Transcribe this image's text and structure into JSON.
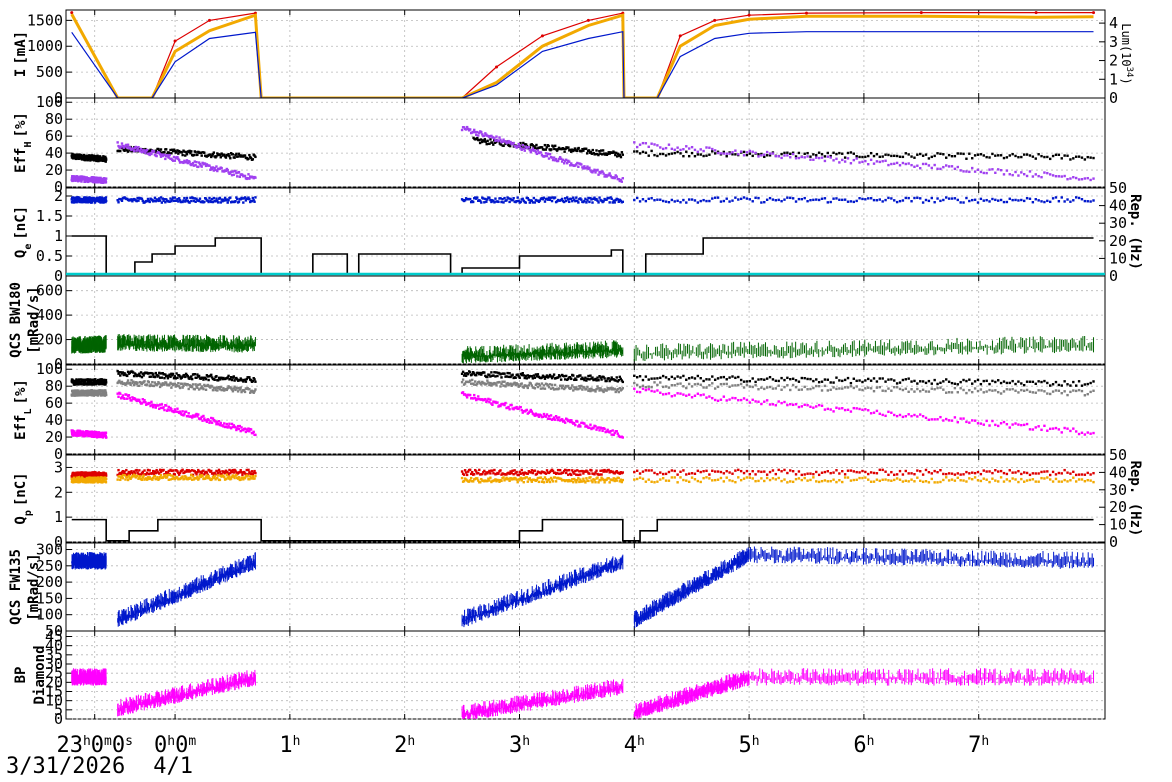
{
  "colors": {
    "red": "#dd0000",
    "orange": "#f2a900",
    "blue": "#0018cc",
    "black": "#000000",
    "purple": "#a040f0",
    "cyan": "#00cccc",
    "green": "#006400",
    "gray": "#808080",
    "magenta": "#ff00ff",
    "grid": "#b8b8b8"
  },
  "date": {
    "first": "3/31/2026",
    "second": "4/1"
  },
  "chart_data": [
    {
      "type": "line",
      "ylabel_main": "I",
      "ylabel_unit": "[mA]",
      "ylim": [
        0,
        1700
      ],
      "yticks": [
        0,
        500,
        1000,
        1500
      ],
      "right_axis": {
        "label_pre": "Lum(10",
        "label_sup": "34",
        "label_post": ")",
        "ylim": [
          0,
          4.7
        ],
        "ticks": [
          0,
          1,
          2,
          3,
          4
        ]
      },
      "x": [
        23.1,
        23.5,
        23.8,
        24.0,
        24.3,
        24.7,
        24.75,
        25.5,
        26.5,
        26.8,
        27.2,
        27.6,
        27.9,
        27.91,
        28.0,
        28.2,
        28.4,
        28.7,
        29.0,
        29.5,
        30.5,
        31.5,
        32.0
      ],
      "series": [
        {
          "name": "",
          "color": "red",
          "values": [
            1650,
            0,
            0,
            1100,
            1500,
            1640,
            0,
            0,
            0,
            600,
            1200,
            1500,
            1640,
            0,
            0,
            0,
            1200,
            1500,
            1600,
            1640,
            1650,
            1650,
            1650
          ]
        },
        {
          "name": "",
          "color": "orange",
          "values": [
            1620,
            0,
            0,
            900,
            1300,
            1600,
            0,
            0,
            0,
            300,
            1000,
            1400,
            1600,
            0,
            0,
            0,
            1000,
            1400,
            1520,
            1580,
            1580,
            1560,
            1570
          ]
        },
        {
          "name": "",
          "color": "blue",
          "values": [
            1270,
            0,
            0,
            700,
            1150,
            1270,
            0,
            0,
            0,
            250,
            900,
            1150,
            1280,
            0,
            0,
            0,
            800,
            1150,
            1250,
            1280,
            1280,
            1280,
            1280
          ]
        }
      ]
    },
    {
      "type": "scatter",
      "ylabel_main": "Eff",
      "ylabel_sub": "H",
      "ylabel_unit": "[%]",
      "ylim": [
        0,
        105
      ],
      "yticks": [
        0,
        20,
        40,
        60,
        80,
        100
      ],
      "series": [
        {
          "name": "",
          "color": "black",
          "segments": [
            [
              23.1,
              23.4,
              36,
              33
            ],
            [
              23.5,
              24.7,
              45,
              35
            ],
            [
              26.6,
              27.9,
              55,
              38
            ],
            [
              28.0,
              32.0,
              40,
              35
            ]
          ]
        },
        {
          "name": "",
          "color": "purple",
          "segments": [
            [
              23.1,
              23.4,
              10,
              8
            ],
            [
              23.5,
              24.7,
              50,
              10
            ],
            [
              26.5,
              27.9,
              70,
              8
            ],
            [
              28.0,
              32.0,
              50,
              10
            ]
          ]
        }
      ]
    },
    {
      "type": "scatter",
      "ylabel_main": "Q",
      "ylabel_sub": "e",
      "ylabel_unit": "[nC]",
      "ylim": [
        0,
        2.2
      ],
      "yticks": [
        0,
        0.5,
        1,
        1.5,
        2
      ],
      "right_axis": {
        "label": "Rep. (Hz)",
        "ylim": [
          0,
          50
        ],
        "ticks": [
          0,
          10,
          20,
          30,
          40,
          50
        ]
      },
      "series": [
        {
          "name": "",
          "color": "blue",
          "segments": [
            [
              23.1,
              23.4,
              1.9,
              1.9
            ],
            [
              23.5,
              24.7,
              1.9,
              1.9
            ],
            [
              26.5,
              27.9,
              1.9,
              1.9
            ],
            [
              28.0,
              32.0,
              1.9,
              1.9
            ]
          ]
        },
        {
          "name": "",
          "color": "black",
          "steps": [
            [
              23.1,
              1.0
            ],
            [
              23.4,
              0.05
            ],
            [
              23.65,
              0.35
            ],
            [
              23.8,
              0.55
            ],
            [
              24.0,
              0.75
            ],
            [
              24.35,
              0.95
            ],
            [
              24.7,
              0.95
            ],
            [
              24.75,
              0.05
            ],
            [
              25.2,
              0.55
            ],
            [
              25.5,
              0.05
            ],
            [
              25.6,
              0.55
            ],
            [
              26.4,
              0.05
            ],
            [
              26.5,
              0.2
            ],
            [
              27.0,
              0.5
            ],
            [
              27.8,
              0.65
            ],
            [
              27.9,
              0.05
            ],
            [
              28.1,
              0.55
            ],
            [
              28.6,
              0.95
            ],
            [
              32.0,
              0.95
            ]
          ]
        },
        {
          "name": "",
          "color": "cyan",
          "values_const": 0.05
        }
      ]
    },
    {
      "type": "line",
      "ylabel_main": "QCS BW180",
      "ylabel_unit": "[mRad/s]",
      "ylim": [
        0,
        720
      ],
      "yticks": [
        0,
        200,
        400,
        600
      ],
      "series": [
        {
          "name": "",
          "color": "green",
          "segments": [
            [
              23.1,
              23.4,
              140,
              150
            ],
            [
              23.5,
              24.7,
              160,
              150
            ],
            [
              26.5,
              27.9,
              60,
              110
            ],
            [
              28.0,
              32.0,
              80,
              150
            ]
          ]
        }
      ]
    },
    {
      "type": "scatter",
      "ylabel_main": "Eff",
      "ylabel_sub": "L",
      "ylabel_unit": "[%]",
      "ylim": [
        0,
        105
      ],
      "yticks": [
        0,
        20,
        40,
        60,
        80,
        100
      ],
      "series": [
        {
          "name": "",
          "color": "black",
          "segments": [
            [
              23.1,
              23.4,
              85,
              85
            ],
            [
              23.5,
              24.7,
              95,
              88
            ],
            [
              26.5,
              27.9,
              95,
              88
            ],
            [
              28.0,
              32.0,
              90,
              83
            ]
          ]
        },
        {
          "name": "",
          "color": "gray",
          "segments": [
            [
              23.1,
              23.4,
              72,
              72
            ],
            [
              23.5,
              24.7,
              85,
              75
            ],
            [
              26.5,
              27.9,
              85,
              75
            ],
            [
              28.0,
              32.0,
              82,
              72
            ]
          ]
        },
        {
          "name": "",
          "color": "magenta",
          "segments": [
            [
              23.1,
              23.4,
              25,
              22
            ],
            [
              23.5,
              24.7,
              70,
              25
            ],
            [
              26.5,
              27.9,
              70,
              22
            ],
            [
              28.0,
              32.0,
              75,
              25
            ]
          ]
        }
      ]
    },
    {
      "type": "scatter",
      "ylabel_main": "Q",
      "ylabel_sub": "p",
      "ylabel_unit": "[nC]",
      "ylim": [
        0,
        3.5
      ],
      "yticks": [
        0,
        1,
        2,
        3
      ],
      "right_axis": {
        "label": "Rep. (Hz)",
        "ylim": [
          0,
          50
        ],
        "ticks": [
          0,
          10,
          20,
          30,
          40,
          50
        ]
      },
      "series": [
        {
          "name": "",
          "color": "red",
          "segments": [
            [
              23.1,
              23.4,
              2.7,
              2.7
            ],
            [
              23.5,
              24.7,
              2.8,
              2.8
            ],
            [
              26.5,
              27.9,
              2.8,
              2.8
            ],
            [
              28.0,
              32.0,
              2.8,
              2.8
            ]
          ]
        },
        {
          "name": "",
          "color": "orange",
          "segments": [
            [
              23.1,
              23.4,
              2.5,
              2.5
            ],
            [
              23.5,
              24.7,
              2.6,
              2.6
            ],
            [
              26.5,
              27.9,
              2.5,
              2.5
            ],
            [
              28.0,
              32.0,
              2.5,
              2.5
            ]
          ]
        },
        {
          "name": "",
          "color": "black",
          "steps": [
            [
              23.1,
              0.9
            ],
            [
              23.4,
              0.05
            ],
            [
              23.6,
              0.45
            ],
            [
              23.85,
              0.9
            ],
            [
              24.75,
              0.05
            ],
            [
              27.0,
              0.45
            ],
            [
              27.2,
              0.9
            ],
            [
              27.9,
              0.05
            ],
            [
              28.05,
              0.45
            ],
            [
              28.2,
              0.9
            ],
            [
              32.0,
              0.9
            ]
          ]
        }
      ]
    },
    {
      "type": "line",
      "ylabel_main": "QCS FW135",
      "ylabel_unit": "[mRad/s]",
      "ylim": [
        50,
        320
      ],
      "yticks": [
        50,
        100,
        150,
        200,
        250,
        300
      ],
      "series": [
        {
          "name": "",
          "color": "blue",
          "segments": [
            [
              23.1,
              23.4,
              260,
              260
            ],
            [
              23.5,
              24.7,
              80,
              260
            ],
            [
              26.5,
              27.9,
              80,
              260
            ],
            [
              28.0,
              29.0,
              80,
              280
            ],
            [
              29.0,
              32.0,
              280,
              260
            ]
          ]
        }
      ]
    },
    {
      "type": "line",
      "ylabel_main": "BP",
      "ylabel_unit": "Diamond",
      "ylim": [
        0,
        48
      ],
      "yticks": [
        0,
        5,
        10,
        15,
        20,
        25,
        30,
        35,
        40,
        45
      ],
      "series": [
        {
          "name": "",
          "color": "magenta",
          "segments": [
            [
              23.1,
              23.4,
              22,
              22
            ],
            [
              23.5,
              24.7,
              5,
              22
            ],
            [
              26.5,
              27.9,
              2,
              17
            ],
            [
              28.0,
              29.0,
              3,
              22
            ],
            [
              29.0,
              32.0,
              22,
              22
            ]
          ]
        }
      ]
    }
  ],
  "x_axis": {
    "range": [
      23.05,
      32.1
    ],
    "ticks": [
      {
        "value": 23.3,
        "main": "23",
        "sup1": "h",
        "mid": "0",
        "sup2": "m",
        "end": "0",
        "sup3": "s"
      },
      {
        "value": 24.0,
        "main": "0",
        "sup1": "h",
        "mid": "0",
        "sup2": "m",
        "end": "",
        "sup3": ""
      },
      {
        "value": 25.0,
        "main": "1",
        "sup1": "h"
      },
      {
        "value": 26.0,
        "main": "2",
        "sup1": "h"
      },
      {
        "value": 27.0,
        "main": "3",
        "sup1": "h"
      },
      {
        "value": 28.0,
        "main": "4",
        "sup1": "h"
      },
      {
        "value": 29.0,
        "main": "5",
        "sup1": "h"
      },
      {
        "value": 30.0,
        "main": "6",
        "sup1": "h"
      },
      {
        "value": 31.0,
        "main": "7",
        "sup1": "h"
      }
    ]
  }
}
